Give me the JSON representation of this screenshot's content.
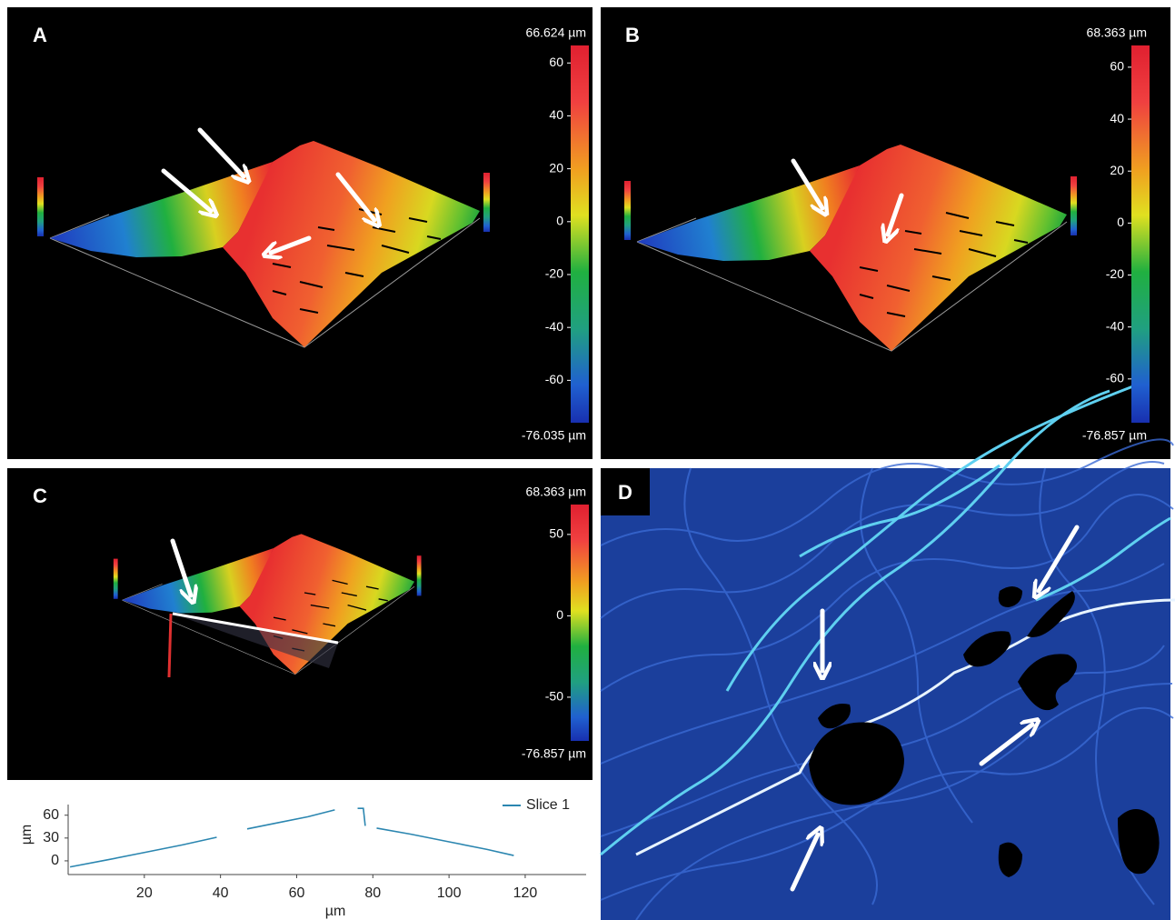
{
  "panels": [
    {
      "label": "A",
      "colorbar": {
        "max": {
          "value": 66.624,
          "label": "66.624 µm"
        },
        "min": {
          "value": -76.035,
          "label": "-76.035 µm"
        },
        "ticks": [
          60,
          40,
          20,
          0,
          -20,
          -40,
          -60
        ]
      }
    },
    {
      "label": "B",
      "colorbar": {
        "max": {
          "value": 68.363,
          "label": "68.363 µm"
        },
        "min": {
          "value": -76.857,
          "label": "-76.857 µm"
        },
        "ticks": [
          60,
          40,
          20,
          0,
          -20,
          -40,
          -60
        ]
      }
    },
    {
      "label": "C",
      "colorbar": {
        "max": {
          "value": 68.363,
          "label": "68.363 µm"
        },
        "min": {
          "value": -76.857,
          "label": "-76.857 µm"
        },
        "ticks": [
          50,
          0,
          -50
        ]
      }
    },
    {
      "label": "D"
    }
  ],
  "chart_data": {
    "type": "line",
    "x": [
      0.5,
      10,
      20,
      30,
      39,
      42,
      47,
      55,
      63,
      70,
      73,
      76,
      77.5,
      78,
      79,
      81,
      90,
      100,
      110,
      117
    ],
    "series": [
      {
        "name": "Slice 1",
        "color": "#2b86b0",
        "values": [
          -8,
          1,
          11,
          21,
          31,
          null,
          42,
          50,
          58,
          67,
          null,
          69,
          69,
          46,
          null,
          43,
          35,
          25,
          15,
          7
        ]
      }
    ],
    "xlim": [
      0,
      136
    ],
    "ylim": [
      -18,
      74
    ],
    "xticks": [
      20,
      40,
      60,
      80,
      100,
      120
    ],
    "yticks": [
      0,
      30,
      60
    ],
    "xlabel": "µm",
    "ylabel": "µm"
  }
}
